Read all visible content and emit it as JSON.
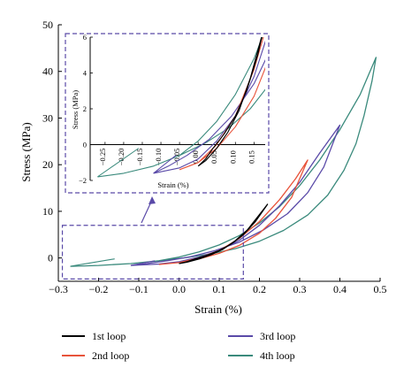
{
  "chart_data": {
    "type": "line",
    "xlabel": "Strain (%)",
    "ylabel": "Stress (MPa)",
    "xlim": [
      -0.3,
      0.5
    ],
    "ylim": [
      -5,
      50
    ],
    "xticks": [
      "−0.3",
      "−0.2",
      "−0.1",
      "0.0",
      "0.1",
      "0.2",
      "0.3",
      "0.4",
      "0.5"
    ],
    "yticks": [
      "0",
      "10",
      "20",
      "30",
      "40",
      "50"
    ],
    "legend": [
      "1st loop",
      "2nd loop",
      "3rd loop",
      "4th loop"
    ],
    "legend_position": "bottom",
    "series": [
      {
        "name": "1st loop",
        "color": "#000000",
        "x": [
          0.0,
          0.02,
          0.05,
          0.08,
          0.11,
          0.14,
          0.17,
          0.2,
          0.22,
          0.19,
          0.16,
          0.13,
          0.1,
          0.07,
          0.04,
          0.02,
          0.0
        ],
        "y": [
          -1.2,
          -0.9,
          -0.2,
          0.7,
          1.9,
          3.7,
          6.0,
          9.3,
          11.5,
          7.8,
          5.0,
          3.0,
          1.6,
          0.6,
          -0.2,
          -0.8,
          -1.2
        ]
      },
      {
        "name": "2nd loop",
        "color": "#e8533a",
        "x": [
          -0.05,
          0.0,
          0.05,
          0.1,
          0.15,
          0.2,
          0.25,
          0.29,
          0.32,
          0.28,
          0.24,
          0.2,
          0.15,
          0.1,
          0.05,
          0.0,
          -0.05
        ],
        "y": [
          -1.4,
          -1.0,
          0.0,
          1.6,
          4.2,
          7.8,
          12.5,
          17.0,
          21.0,
          13.0,
          8.5,
          5.3,
          2.7,
          1.0,
          -0.2,
          -1.0,
          -1.4
        ]
      },
      {
        "name": "3rd loop",
        "color": "#5a4aa8",
        "x": [
          -0.12,
          -0.05,
          0.0,
          0.05,
          0.1,
          0.15,
          0.2,
          0.25,
          0.3,
          0.35,
          0.4,
          0.36,
          0.32,
          0.27,
          0.21,
          0.15,
          0.09,
          0.03,
          -0.03,
          -0.08,
          -0.12
        ],
        "y": [
          -1.6,
          -1.3,
          -0.8,
          0.2,
          1.6,
          3.8,
          7.0,
          11.2,
          16.2,
          22.5,
          28.5,
          19.5,
          14.0,
          9.5,
          6.0,
          3.4,
          1.6,
          0.3,
          -0.6,
          -1.2,
          -1.6
        ]
      },
      {
        "name": "4th loop",
        "color": "#3a8a7c",
        "x": [
          -0.27,
          -0.2,
          -0.12,
          -0.05,
          0.0,
          0.05,
          0.1,
          0.15,
          0.2,
          0.25,
          0.3,
          0.35,
          0.4,
          0.45,
          0.49,
          0.48,
          0.46,
          0.44,
          0.41,
          0.37,
          0.32,
          0.26,
          0.2,
          0.14,
          0.08,
          0.02,
          -0.05,
          -0.12,
          -0.2,
          -0.27
        ],
        "y": [
          -1.8,
          -1.6,
          -1.2,
          -0.6,
          0.2,
          1.3,
          2.8,
          4.8,
          7.5,
          11.0,
          15.5,
          21.0,
          27.5,
          35.0,
          43.0,
          38.0,
          30.5,
          24.5,
          18.8,
          13.5,
          9.2,
          5.9,
          3.6,
          2.0,
          0.9,
          0.1,
          -0.6,
          -1.2,
          -1.6,
          -1.8
        ]
      }
    ],
    "tails": [
      {
        "color": "#3a8a7c",
        "x": [
          -0.27,
          -0.16
        ],
        "y": [
          -1.8,
          -0.2
        ]
      },
      {
        "color": "#5a4aa8",
        "x": [
          -0.12,
          -0.06
        ],
        "y": [
          -1.6,
          -0.6
        ]
      }
    ],
    "inset": {
      "xlabel": "Strain (%)",
      "ylabel": "Stress (MPa)",
      "xlim": [
        -0.29,
        0.18
      ],
      "ylim": [
        -2,
        6
      ],
      "xticks": [
        "−0.25",
        "−0.20",
        "−0.15",
        "−0.10",
        "−0.05",
        "0.00",
        "0.05",
        "0.10",
        "0.15"
      ],
      "yticks": [
        "−2",
        "0",
        "2",
        "4",
        "6"
      ],
      "zoom_region": {
        "x": [
          -0.29,
          0.16
        ],
        "y": [
          -4.5,
          7.0
        ]
      }
    }
  }
}
